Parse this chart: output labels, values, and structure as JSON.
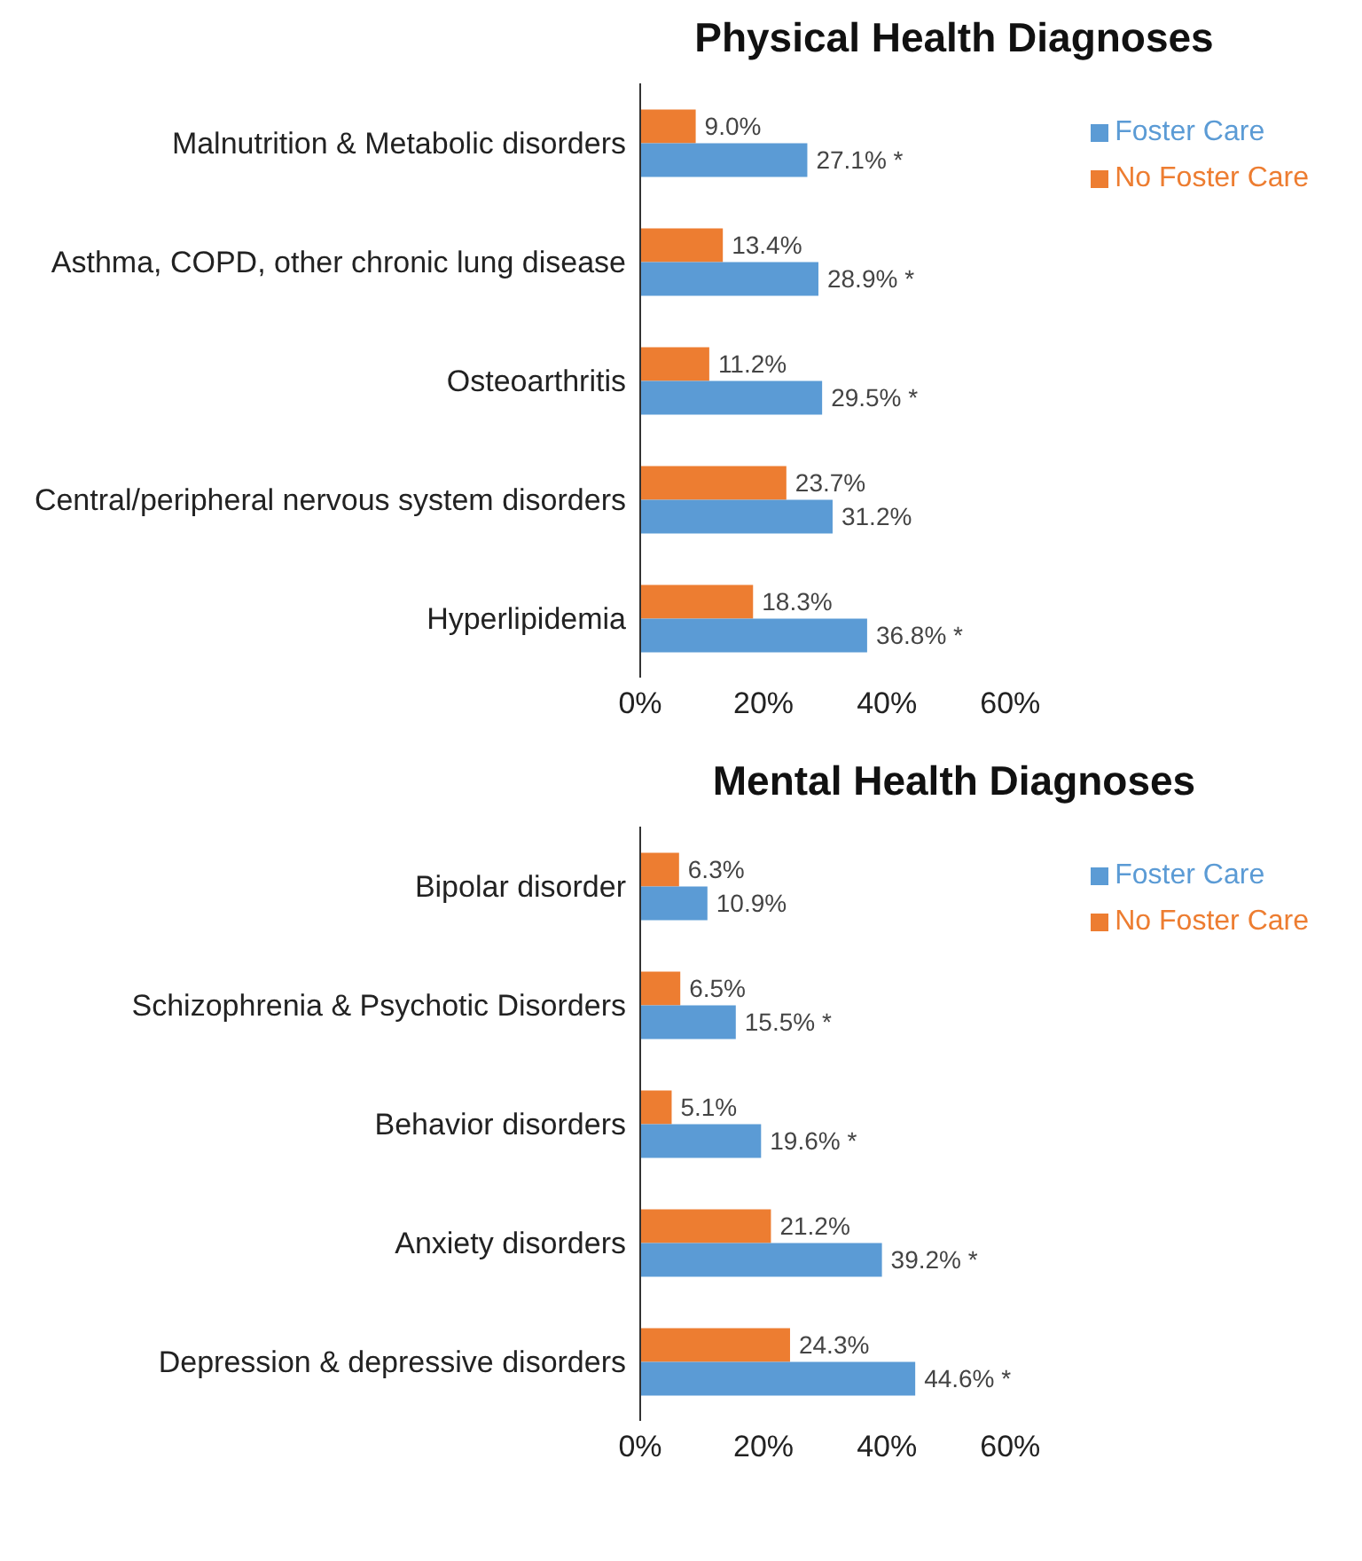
{
  "chart_data": [
    {
      "type": "bar",
      "orientation": "horizontal",
      "title": "Physical Health Diagnoses",
      "categories": [
        "Malnutrition & Metabolic disorders",
        "Asthma, COPD, other chronic lung disease",
        "Osteoarthritis",
        "Central/peripheral nervous system disorders",
        "Hyperlipidemia"
      ],
      "series": [
        {
          "name": "No Foster Care",
          "color": "#ed7d31",
          "values": [
            9.0,
            13.4,
            11.2,
            23.7,
            18.3
          ],
          "value_labels": [
            "9.0%",
            "13.4%",
            "11.2%",
            "23.7%",
            "18.3%"
          ]
        },
        {
          "name": "Foster Care",
          "color": "#5b9bd5",
          "values": [
            27.1,
            28.9,
            29.5,
            31.2,
            36.8
          ],
          "value_labels": [
            "27.1% *",
            "28.9% *",
            "29.5% *",
            "31.2%",
            "36.8% *"
          ]
        }
      ],
      "xlim": [
        0,
        60
      ],
      "xticks": [
        {
          "value": 0,
          "label": "0%"
        },
        {
          "value": 20,
          "label": "20%"
        },
        {
          "value": 40,
          "label": "40%"
        },
        {
          "value": 60,
          "label": "60%"
        }
      ],
      "grid": false,
      "legend": "top right"
    },
    {
      "type": "bar",
      "orientation": "horizontal",
      "title": "Mental Health Diagnoses",
      "categories": [
        "Bipolar disorder",
        "Schizophrenia & Psychotic Disorders",
        "Behavior disorders",
        "Anxiety disorders",
        "Depression & depressive disorders"
      ],
      "series": [
        {
          "name": "No Foster Care",
          "color": "#ed7d31",
          "values": [
            6.3,
            6.5,
            5.1,
            21.2,
            24.3
          ],
          "value_labels": [
            "6.3%",
            "6.5%",
            "5.1%",
            "21.2%",
            "24.3%"
          ]
        },
        {
          "name": "Foster Care",
          "color": "#5b9bd5",
          "values": [
            10.9,
            15.5,
            19.6,
            39.2,
            44.6
          ],
          "value_labels": [
            "10.9%",
            "15.5% *",
            "19.6% *",
            "39.2% *",
            "44.6% *"
          ]
        }
      ],
      "xlim": [
        0,
        60
      ],
      "xticks": [
        {
          "value": 0,
          "label": "0%"
        },
        {
          "value": 20,
          "label": "20%"
        },
        {
          "value": 40,
          "label": "40%"
        },
        {
          "value": 60,
          "label": "60%"
        }
      ],
      "grid": false,
      "legend": "top right"
    }
  ]
}
